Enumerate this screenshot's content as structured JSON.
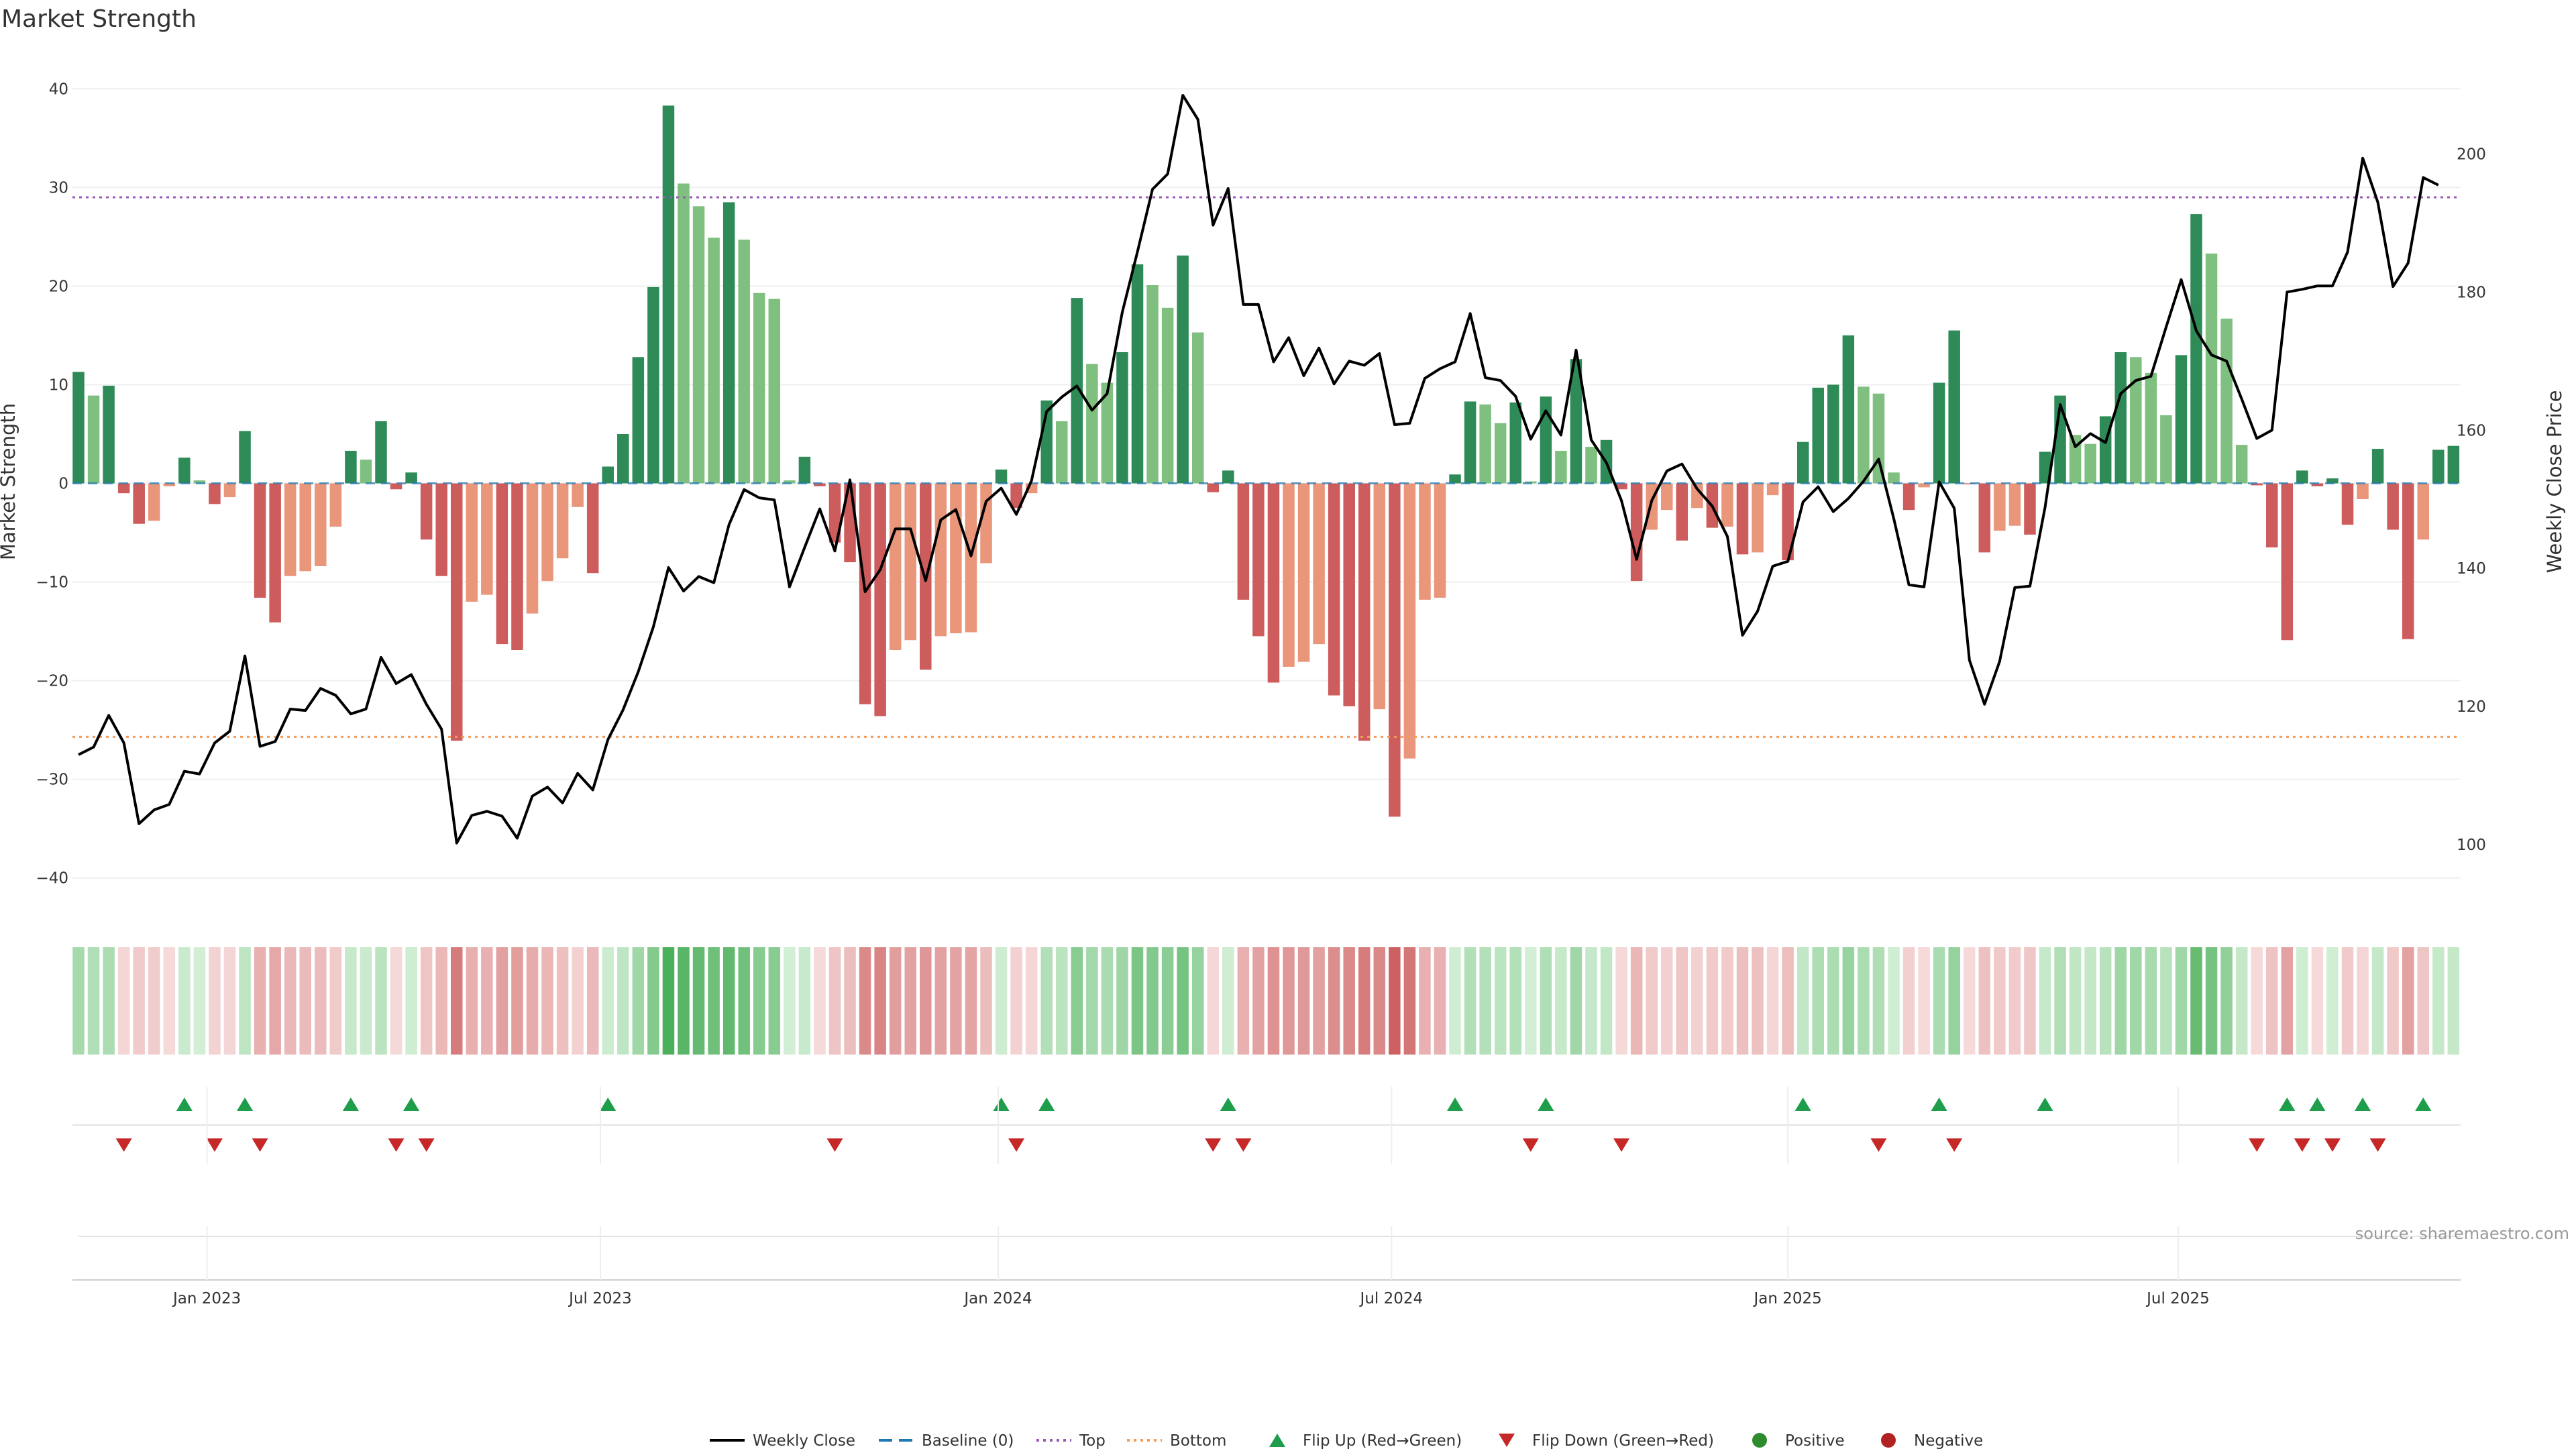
{
  "chart_data": {
    "type": "bar",
    "title": "Market Strength",
    "ylabel_left": "Market Strength",
    "ylabel_right": "Weekly Close Price",
    "source": "source: sharemaestro.com",
    "left_axis": {
      "ylim": [
        -42,
        42
      ],
      "ticks": [
        40,
        30,
        20,
        10,
        0,
        -10,
        -20,
        -30,
        -40
      ],
      "tick_labels": [
        "40",
        "30",
        "20",
        "10",
        "0",
        "−10",
        "−20",
        "−30",
        "−40"
      ]
    },
    "right_axis": {
      "ylim": [
        92.3,
        212.3
      ],
      "ticks": [
        100,
        120,
        140,
        160,
        180,
        200
      ],
      "tick_labels": [
        "100",
        "120",
        "140",
        "160",
        "180",
        "200"
      ]
    },
    "x_ticks": [
      {
        "week": 8.5,
        "label": "Jan 2023"
      },
      {
        "week": 34.5,
        "label": "Jul 2023"
      },
      {
        "week": 60.8,
        "label": "Jan 2024"
      },
      {
        "week": 86.8,
        "label": "Jul 2024"
      },
      {
        "week": 113.0,
        "label": "Jan 2025"
      },
      {
        "week": 138.8,
        "label": "Jul 2025"
      }
    ],
    "reference_lines": {
      "top": 29,
      "bottom": -25.7,
      "baseline": 0
    },
    "colors": {
      "strong_positive": "#2e8b57",
      "weak_positive": "#7fbf7f",
      "strong_negative": "#cd5c5c",
      "weak_negative": "#e9967a",
      "price_line": "#000000",
      "top_line": "#9b59b6",
      "bottom_line": "#f39c5a",
      "baseline": "#1f77b4",
      "flip_up": "#1e9e4a",
      "flip_down": "#c62828",
      "positive_dot": "#2e8b2e",
      "negative_dot": "#b22222"
    },
    "strength": [
      11.3,
      8.9,
      9.9,
      -1.0,
      -4.1,
      -3.8,
      -0.3,
      2.6,
      0.3,
      -2.1,
      -1.4,
      5.3,
      -11.6,
      -14.1,
      -9.4,
      -8.9,
      -8.4,
      -4.4,
      3.3,
      2.4,
      6.3,
      -0.6,
      1.1,
      -5.7,
      -9.4,
      -26.1,
      -12.0,
      -11.3,
      -16.3,
      -16.9,
      -13.2,
      -9.9,
      -7.6,
      -2.4,
      -9.1,
      1.7,
      5.0,
      12.8,
      19.9,
      38.3,
      30.4,
      28.1,
      24.9,
      28.5,
      24.7,
      19.3,
      18.7,
      0.3,
      2.7,
      -0.3,
      -6.0,
      -8.0,
      -22.4,
      -23.6,
      -16.9,
      -15.9,
      -18.9,
      -15.5,
      -15.2,
      -15.1,
      -8.1,
      1.4,
      -2.5,
      -1.0,
      8.4,
      6.3,
      18.8,
      12.1,
      10.2,
      13.3,
      22.2,
      20.1,
      17.8,
      23.1,
      15.3,
      -0.9,
      1.3,
      -11.8,
      -15.5,
      -20.2,
      -18.6,
      -18.1,
      -16.3,
      -21.5,
      -22.6,
      -26.1,
      -22.9,
      -33.8,
      -27.9,
      -11.8,
      -11.6,
      0.9,
      8.3,
      8.0,
      6.1,
      8.2,
      0.2,
      8.8,
      3.3,
      12.6,
      3.7,
      4.4,
      -0.6,
      -9.9,
      -4.7,
      -2.7,
      -5.8,
      -2.5,
      -4.5,
      -4.4,
      -7.2,
      -7.0,
      -1.2,
      -7.8,
      4.2,
      9.7,
      10.0,
      15.0,
      9.8,
      9.1,
      1.1,
      -2.7,
      -0.4,
      10.2,
      15.5,
      -0.1,
      -7.0,
      -4.8,
      -4.3,
      -5.2,
      3.2,
      8.9,
      4.9,
      4.0,
      6.8,
      13.3,
      12.8,
      11.2,
      6.9,
      13.0,
      27.3,
      23.3,
      16.7,
      3.9,
      -0.2,
      -6.5,
      -15.9,
      1.3,
      -0.3,
      0.5,
      -4.2,
      -1.6,
      3.5,
      -4.7,
      -15.8,
      -5.7,
      3.4,
      3.8
    ],
    "price": [
      113.0,
      114.1,
      118.7,
      114.7,
      103.0,
      105.0,
      105.8,
      110.6,
      110.2,
      114.7,
      116.4,
      127.3,
      114.2,
      114.9,
      119.6,
      119.4,
      122.6,
      121.6,
      118.9,
      119.6,
      127.1,
      123.3,
      124.6,
      120.3,
      116.7,
      100.2,
      104.2,
      104.8,
      104.1,
      100.9,
      107.0,
      108.3,
      106.0,
      110.3,
      107.9,
      115.2,
      119.5,
      125.0,
      131.5,
      140.1,
      136.7,
      138.8,
      137.9,
      146.3,
      151.4,
      150.2,
      149.9,
      137.3,
      143.0,
      148.6,
      142.5,
      152.8,
      136.6,
      139.8,
      145.7,
      145.7,
      138.2,
      147.0,
      148.5,
      141.8,
      149.7,
      151.6,
      147.8,
      152.7,
      162.7,
      164.8,
      166.4,
      162.9,
      165.3,
      177.1,
      185.8,
      194.9,
      197.1,
      208.5,
      205.0,
      189.7,
      195.0,
      178.2,
      178.2,
      169.9,
      173.4,
      167.9,
      171.9,
      166.7,
      170.0,
      169.4,
      171.1,
      160.8,
      161.0,
      167.5,
      168.9,
      169.9,
      176.9,
      167.6,
      167.2,
      164.9,
      158.7,
      162.8,
      159.3,
      171.6,
      158.6,
      155.3,
      149.8,
      141.3,
      149.8,
      154.1,
      155.1,
      151.5,
      149.0,
      144.6,
      130.3,
      133.8,
      140.3,
      141.0,
      149.6,
      151.8,
      148.2,
      150.1,
      152.6,
      155.8,
      147.2,
      137.6,
      137.3,
      152.5,
      148.7,
      126.7,
      120.3,
      126.5,
      137.2,
      137.4,
      148.8,
      163.7,
      157.6,
      159.5,
      158.2,
      165.3,
      167.2,
      167.8,
      174.9,
      181.8,
      174.4,
      170.9,
      170.0,
      164.5,
      158.8,
      160.0,
      180.0,
      180.4,
      180.9,
      180.9,
      185.8,
      199.4,
      193.0,
      180.8,
      184.2,
      196.6,
      195.5
    ],
    "flip_up_weeks": [
      7,
      11,
      18,
      22,
      35,
      61,
      64,
      76,
      91,
      97,
      114,
      123,
      130,
      146,
      148,
      151,
      155
    ],
    "flip_down_weeks": [
      3,
      9,
      12,
      21,
      23,
      50,
      62,
      75,
      77,
      96,
      102,
      119,
      124,
      144,
      147,
      149,
      152
    ],
    "legend": [
      {
        "label": "Weekly Close",
        "style": "solid",
        "color": "#000000"
      },
      {
        "label": "Baseline (0)",
        "style": "dash",
        "color": "#1f77b4"
      },
      {
        "label": "Top",
        "style": "dot",
        "color": "#9b59b6"
      },
      {
        "label": "Bottom",
        "style": "dot",
        "color": "#f39c5a"
      },
      {
        "label": "Flip Up (Red→Green)",
        "style": "triangle-up",
        "color": "#1e9e4a"
      },
      {
        "label": "Flip Down (Green→Red)",
        "style": "triangle-down",
        "color": "#c62828"
      },
      {
        "label": "Positive",
        "style": "dot-marker",
        "color": "#2e8b2e"
      },
      {
        "label": "Negative",
        "style": "dot-marker",
        "color": "#b22222"
      }
    ]
  }
}
